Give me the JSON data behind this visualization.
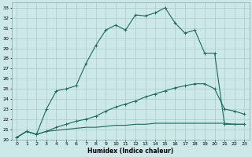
{
  "xlabel": "Humidex (Indice chaleur)",
  "bg_color": "#cce8e8",
  "grid_color": "#aacccc",
  "line_color": "#1a6b5a",
  "xlim": [
    -0.5,
    23.5
  ],
  "ylim": [
    20,
    33.5
  ],
  "xticks": [
    0,
    1,
    2,
    3,
    4,
    5,
    6,
    7,
    8,
    9,
    10,
    11,
    12,
    13,
    14,
    15,
    16,
    17,
    18,
    19,
    20,
    21,
    22,
    23
  ],
  "yticks": [
    20,
    21,
    22,
    23,
    24,
    25,
    26,
    27,
    28,
    29,
    30,
    31,
    32,
    33
  ],
  "curve1_x": [
    0,
    1,
    2,
    3,
    4,
    5,
    6,
    7,
    8,
    9,
    10,
    11,
    12,
    13,
    14,
    15,
    16,
    17,
    18,
    19,
    20,
    21,
    22,
    23
  ],
  "curve1_y": [
    20.2,
    20.8,
    20.5,
    23.0,
    24.8,
    25.0,
    25.3,
    27.5,
    29.3,
    30.8,
    31.3,
    30.8,
    32.3,
    32.2,
    32.5,
    33.0,
    31.5,
    30.5,
    30.8,
    28.5,
    28.5,
    21.5,
    21.5,
    21.5
  ],
  "curve2_x": [
    0,
    1,
    2,
    3,
    4,
    5,
    6,
    7,
    8,
    9,
    10,
    11,
    12,
    13,
    14,
    15,
    16,
    17,
    18,
    19,
    20,
    21,
    22,
    23
  ],
  "curve2_y": [
    20.2,
    20.8,
    20.5,
    20.8,
    21.2,
    21.5,
    21.8,
    22.0,
    22.3,
    22.8,
    23.2,
    23.5,
    23.8,
    24.2,
    24.5,
    24.8,
    25.1,
    25.3,
    25.5,
    25.5,
    25.0,
    23.0,
    22.8,
    22.5
  ],
  "curve3_x": [
    0,
    1,
    2,
    3,
    4,
    5,
    6,
    7,
    8,
    9,
    10,
    11,
    12,
    13,
    14,
    15,
    16,
    17,
    18,
    19,
    20,
    21,
    22,
    23
  ],
  "curve3_y": [
    20.2,
    20.8,
    20.5,
    20.8,
    20.9,
    21.0,
    21.1,
    21.2,
    21.2,
    21.3,
    21.4,
    21.4,
    21.5,
    21.5,
    21.6,
    21.6,
    21.6,
    21.6,
    21.6,
    21.6,
    21.6,
    21.6,
    21.5,
    21.5
  ]
}
